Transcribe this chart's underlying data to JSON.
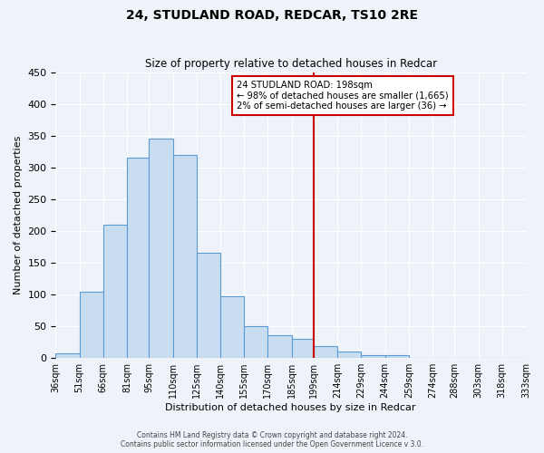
{
  "title": "24, STUDLAND ROAD, REDCAR, TS10 2RE",
  "subtitle": "Size of property relative to detached houses in Redcar",
  "xlabel": "Distribution of detached houses by size in Redcar",
  "ylabel": "Number of detached properties",
  "bins": [
    36,
    51,
    66,
    81,
    95,
    110,
    125,
    140,
    155,
    170,
    185,
    199,
    214,
    229,
    244,
    259,
    274,
    288,
    303,
    318,
    333
  ],
  "bin_labels": [
    "36sqm",
    "51sqm",
    "66sqm",
    "81sqm",
    "95sqm",
    "110sqm",
    "125sqm",
    "140sqm",
    "155sqm",
    "170sqm",
    "185sqm",
    "199sqm",
    "214sqm",
    "229sqm",
    "244sqm",
    "259sqm",
    "274sqm",
    "288sqm",
    "303sqm",
    "318sqm",
    "333sqm"
  ],
  "counts": [
    7,
    105,
    210,
    315,
    345,
    320,
    165,
    97,
    50,
    36,
    30,
    19,
    10,
    5,
    5,
    1,
    1,
    1,
    1,
    1
  ],
  "bar_color": "#c8ddf0",
  "bar_edge_color": "#5b9bd5",
  "vline_x": 199,
  "vline_color": "#cc0000",
  "ylim": [
    0,
    450
  ],
  "yticks": [
    0,
    50,
    100,
    150,
    200,
    250,
    300,
    350,
    400,
    450
  ],
  "annotation_title": "24 STUDLAND ROAD: 198sqm",
  "annotation_line1": "← 98% of detached houses are smaller (1,665)",
  "annotation_line2": "2% of semi-detached houses are larger (36) →",
  "annotation_box_color": "#cc0000",
  "background_color": "#eef3fa",
  "grid_color": "#ffffff",
  "footer_line1": "Contains HM Land Registry data © Crown copyright and database right 2024.",
  "footer_line2": "Contains public sector information licensed under the Open Government Licence v 3.0."
}
